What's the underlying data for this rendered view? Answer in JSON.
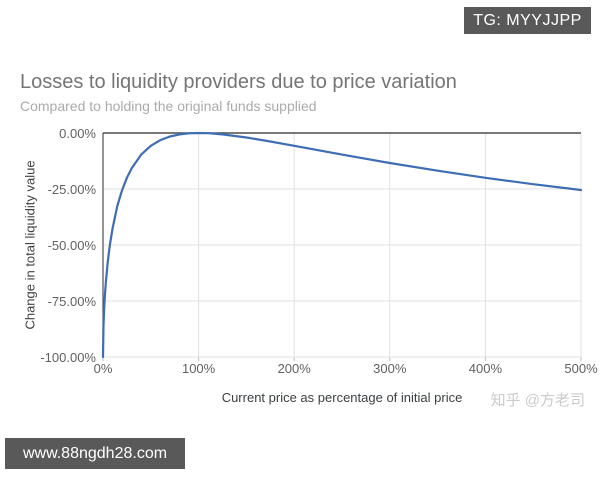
{
  "watermarks": {
    "tg_badge": "TG: MYYJJPP",
    "site_badge": "www.88ngdh28.com",
    "zhihu": "知乎 @方老司"
  },
  "chart_data": {
    "type": "line",
    "title": "Losses to liquidity providers due to price variation",
    "subtitle": "Compared to holding the original funds supplied",
    "xlabel": "Current price as percentage of initial price",
    "ylabel": "Change in total liquidity value",
    "xlim": [
      0,
      500
    ],
    "ylim": [
      -100,
      0
    ],
    "x_tick_values": [
      0,
      100,
      200,
      300,
      400,
      500
    ],
    "x_ticks": [
      "0%",
      "100%",
      "200%",
      "300%",
      "400%",
      "500%"
    ],
    "y_tick_values": [
      0,
      -25,
      -50,
      -75,
      -100
    ],
    "y_ticks": [
      "0.00%",
      "-25.00%",
      "-50.00%",
      "-75.00%",
      "-100.00%"
    ],
    "grid": true,
    "legend": "none",
    "colors": {
      "line": "#3e6db5",
      "gridline": "#e0e0e0",
      "baseline": "#4d4d4d",
      "tick": "#bdbdbd"
    },
    "series": [
      {
        "name": "Change in total liquidity value",
        "points": [
          [
            0,
            -100.0
          ],
          [
            0.5,
            -85.9
          ],
          [
            1,
            -80.2
          ],
          [
            2,
            -72.3
          ],
          [
            3,
            -66.4
          ],
          [
            5,
            -57.4
          ],
          [
            7,
            -50.5
          ],
          [
            10,
            -42.5
          ],
          [
            15,
            -32.6
          ],
          [
            20,
            -25.5
          ],
          [
            25,
            -20.0
          ],
          [
            30,
            -15.7
          ],
          [
            40,
            -9.65
          ],
          [
            50,
            -5.72
          ],
          [
            60,
            -3.18
          ],
          [
            70,
            -1.57
          ],
          [
            80,
            -0.62
          ],
          [
            90,
            -0.14
          ],
          [
            100,
            0.0
          ],
          [
            110,
            -0.11
          ],
          [
            125,
            -0.62
          ],
          [
            150,
            -2.02
          ],
          [
            175,
            -3.79
          ],
          [
            200,
            -5.72
          ],
          [
            250,
            -9.65
          ],
          [
            300,
            -13.4
          ],
          [
            350,
            -16.85
          ],
          [
            400,
            -20.0
          ],
          [
            450,
            -22.86
          ],
          [
            500,
            -25.46
          ]
        ]
      }
    ]
  }
}
